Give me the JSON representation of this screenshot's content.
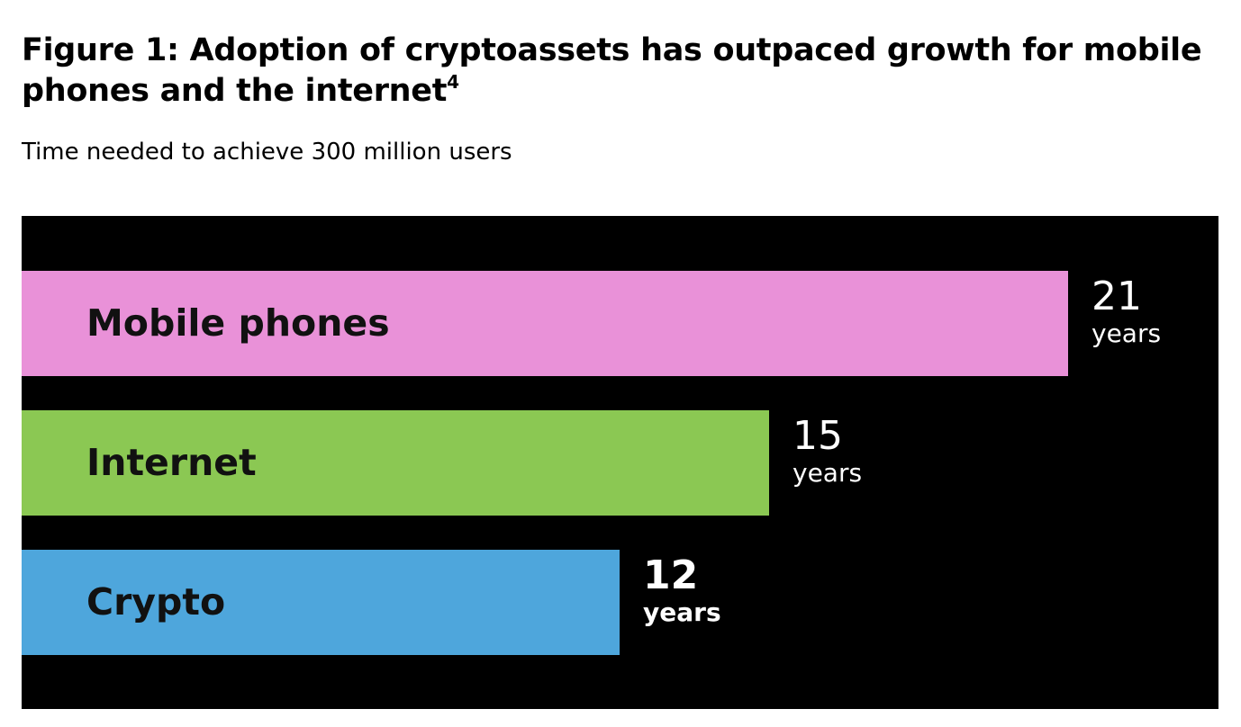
{
  "header": {
    "title": "Figure 1: Adoption of cryptoassets has outpaced growth for mobile phones and the internet",
    "footnote": "4",
    "subtitle": "Time needed to achieve 300 million users"
  },
  "chart_data": {
    "type": "bar",
    "orientation": "horizontal",
    "title": "Figure 1: Adoption of cryptoassets has outpaced growth for mobile phones and the internet",
    "subtitle": "Time needed to achieve 300 million users",
    "xlabel": "",
    "ylabel": "",
    "xlim": [
      0,
      21
    ],
    "grid": false,
    "legend": "none",
    "background": "#000000",
    "unit": "years",
    "categories": [
      "Mobile phones",
      "Internet",
      "Crypto"
    ],
    "values": [
      21,
      15,
      12
    ],
    "colors": [
      "#e991d8",
      "#8bc853",
      "#4ea6dc"
    ],
    "value_labels": [
      {
        "number": "21",
        "unit": "years",
        "bold": false
      },
      {
        "number": "15",
        "unit": "years",
        "bold": false
      },
      {
        "number": "12",
        "unit": "years",
        "bold": true
      }
    ]
  }
}
